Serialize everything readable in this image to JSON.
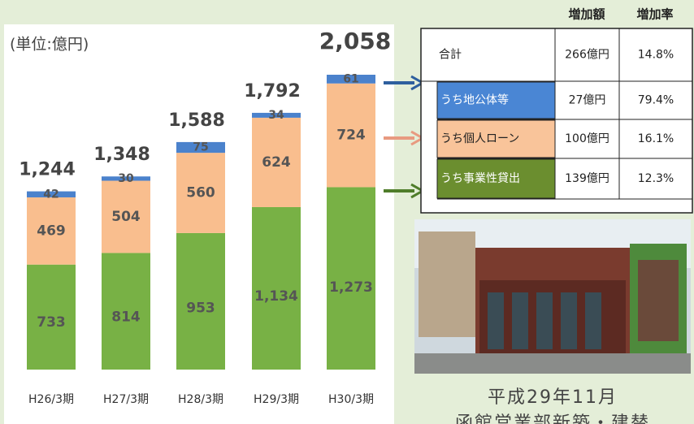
{
  "unit": "(単位:億円)",
  "chart_data": {
    "type": "stacked-bar",
    "categories": [
      "H26/3期",
      "H27/3期",
      "H28/3期",
      "H29/3期",
      "H30/3期"
    ],
    "series": [
      {
        "color": "#78b145",
        "values": [
          733,
          814,
          953,
          1134,
          1273
        ],
        "value_labels": [
          "733",
          "814",
          "953",
          "1,134",
          "1,273"
        ]
      },
      {
        "color": "#f9be8e",
        "values": [
          469,
          504,
          560,
          624,
          724
        ]
      },
      {
        "color": "#4b82cc",
        "values": [
          42,
          30,
          75,
          34,
          61
        ]
      }
    ],
    "totals": {
      "values": [
        1244,
        1348,
        1588,
        1792,
        2058
      ],
      "value_labels": [
        "1,244",
        "1,348",
        "1,588",
        "1,792",
        "2,058"
      ]
    }
  },
  "table": {
    "header": [
      "増加額",
      "増加率"
    ],
    "rows": [
      [
        "合計",
        "266億円",
        "14.8%"
      ],
      [
        "うち地公体等",
        "27億円",
        "79.4%"
      ],
      [
        "うち個人ローン",
        "100億円",
        "16.1%"
      ],
      [
        "うち事業性貸出",
        "139億円",
        "12.3%"
      ]
    ]
  },
  "caption": [
    "平成29年11月",
    "函館営業部新築・建替"
  ]
}
